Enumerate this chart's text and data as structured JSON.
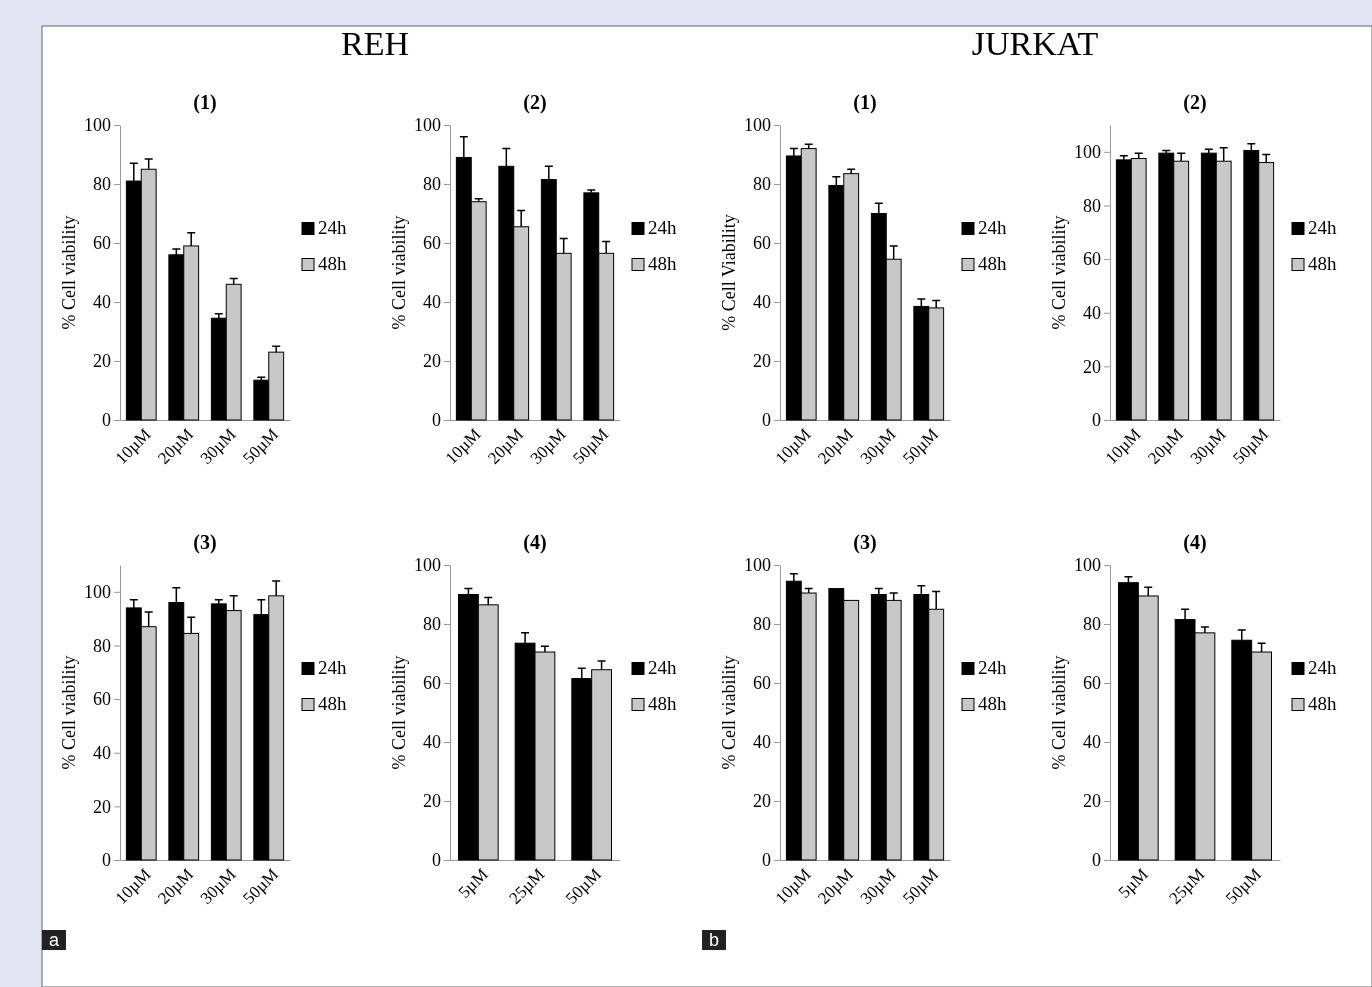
{
  "chart_data": [
    {
      "type": "bar",
      "title": "(1)",
      "ylabel": "% Cell viability",
      "categories": [
        "10µM",
        "20µM",
        "30µM",
        "50µM"
      ],
      "series": [
        {
          "name": "24h",
          "color": "#000000",
          "values": [
            81,
            56,
            34.5,
            13.5
          ],
          "errors": [
            6,
            2,
            1.5,
            1
          ]
        },
        {
          "name": "48h",
          "color": "#c8c8c8",
          "values": [
            85,
            59,
            46,
            23
          ],
          "errors": [
            3.5,
            4.5,
            2,
            2
          ]
        }
      ],
      "ylim": [
        0,
        100
      ],
      "yticks": [
        0,
        20,
        40,
        60,
        80,
        100
      ],
      "legend": "right",
      "grid": false,
      "annotations": [
        "REH"
      ]
    },
    {
      "type": "bar",
      "title": "(2)",
      "ylabel": "% Cell viability",
      "categories": [
        "10µM",
        "20µM",
        "30µM",
        "50µM"
      ],
      "series": [
        {
          "name": "24h",
          "color": "#000000",
          "values": [
            89,
            86,
            81.5,
            77
          ],
          "errors": [
            7,
            6,
            4.5,
            1
          ]
        },
        {
          "name": "48h",
          "color": "#c8c8c8",
          "values": [
            74,
            65.5,
            56.5,
            56.5
          ],
          "errors": [
            1,
            5.5,
            5,
            4
          ]
        }
      ],
      "ylim": [
        0,
        100
      ],
      "yticks": [
        0,
        20,
        40,
        60,
        80,
        100
      ],
      "legend": "right",
      "grid": false
    },
    {
      "type": "bar",
      "title": "(1)",
      "ylabel": "% Cell Viability",
      "categories": [
        "10µM",
        "20µM",
        "30µM",
        "50µM"
      ],
      "series": [
        {
          "name": "24h",
          "color": "#000000",
          "values": [
            89.5,
            79.5,
            70,
            38.5
          ],
          "errors": [
            2.5,
            3,
            3.5,
            2.5
          ]
        },
        {
          "name": "48h",
          "color": "#c8c8c8",
          "values": [
            92,
            83.5,
            54.5,
            38
          ],
          "errors": [
            1.5,
            1.5,
            4.5,
            2.5
          ]
        }
      ],
      "ylim": [
        0,
        100
      ],
      "yticks": [
        0,
        20,
        40,
        60,
        80,
        100
      ],
      "legend": "right",
      "grid": false,
      "annotations": [
        "JURKAT"
      ]
    },
    {
      "type": "bar",
      "title": "(2)",
      "ylabel": "% Cell viability",
      "categories": [
        "10µM",
        "20µM",
        "30µM",
        "50µM"
      ],
      "series": [
        {
          "name": "24h",
          "color": "#000000",
          "values": [
            97,
            99.5,
            99.5,
            100.5
          ],
          "errors": [
            1.5,
            1,
            1.5,
            2.5
          ]
        },
        {
          "name": "48h",
          "color": "#c8c8c8",
          "values": [
            97.5,
            96.5,
            96.5,
            96
          ],
          "errors": [
            2,
            3,
            5,
            3
          ]
        }
      ],
      "ylim": [
        0,
        110
      ],
      "yticks": [
        0,
        20,
        40,
        60,
        80,
        100
      ],
      "legend": "right",
      "grid": false
    },
    {
      "type": "bar",
      "title": "(3)",
      "ylabel": "% Cell viability",
      "categories": [
        "10µM",
        "20µM",
        "30µM",
        "50µM"
      ],
      "series": [
        {
          "name": "24h",
          "color": "#000000",
          "values": [
            94,
            96,
            95.5,
            91.5
          ],
          "errors": [
            3,
            5.5,
            1.5,
            5.5
          ]
        },
        {
          "name": "48h",
          "color": "#c8c8c8",
          "values": [
            87,
            84.5,
            93,
            98.5
          ],
          "errors": [
            5.5,
            6,
            5.5,
            5.5
          ]
        }
      ],
      "ylim": [
        0,
        110
      ],
      "yticks": [
        0,
        20,
        40,
        60,
        80,
        100
      ],
      "legend": "right",
      "grid": false,
      "annotations": [
        "a"
      ]
    },
    {
      "type": "bar",
      "title": "(4)",
      "ylabel": "% Cell viability",
      "categories": [
        "5µM",
        "25µM",
        "50µM"
      ],
      "series": [
        {
          "name": "24h",
          "color": "#000000",
          "values": [
            90,
            73.5,
            61.5
          ],
          "errors": [
            2,
            3.5,
            3.5
          ]
        },
        {
          "name": "48h",
          "color": "#c8c8c8",
          "values": [
            86.5,
            70.5,
            64.5
          ],
          "errors": [
            2.5,
            2,
            3
          ]
        }
      ],
      "ylim": [
        0,
        100
      ],
      "yticks": [
        0,
        20,
        40,
        60,
        80,
        100
      ],
      "legend": "right",
      "grid": false
    },
    {
      "type": "bar",
      "title": "(3)",
      "ylabel": "% Cell viability",
      "categories": [
        "10µM",
        "20µM",
        "30µM",
        "50µM"
      ],
      "series": [
        {
          "name": "24h",
          "color": "#000000",
          "values": [
            94.5,
            92,
            90,
            90
          ],
          "errors": [
            2.5,
            null,
            2,
            3
          ]
        },
        {
          "name": "48h",
          "color": "#c8c8c8",
          "values": [
            90.5,
            88,
            88,
            85
          ],
          "errors": [
            1.5,
            null,
            2.5,
            6
          ]
        }
      ],
      "ylim": [
        0,
        100
      ],
      "yticks": [
        0,
        20,
        40,
        60,
        80,
        100
      ],
      "legend": "right",
      "grid": false,
      "annotations": [
        "b"
      ]
    },
    {
      "type": "bar",
      "title": "(4)",
      "ylabel": "% Cell viability",
      "categories": [
        "5µM",
        "25µM",
        "50µM"
      ],
      "series": [
        {
          "name": "24h",
          "color": "#000000",
          "values": [
            94,
            81.5,
            74.5
          ],
          "errors": [
            2,
            3.5,
            3.5
          ]
        },
        {
          "name": "48h",
          "color": "#c8c8c8",
          "values": [
            89.5,
            77,
            70.5
          ],
          "errors": [
            3,
            2,
            3
          ]
        }
      ],
      "ylim": [
        0,
        100
      ],
      "yticks": [
        0,
        20,
        40,
        60,
        80,
        100
      ],
      "legend": "right",
      "grid": false
    }
  ]
}
